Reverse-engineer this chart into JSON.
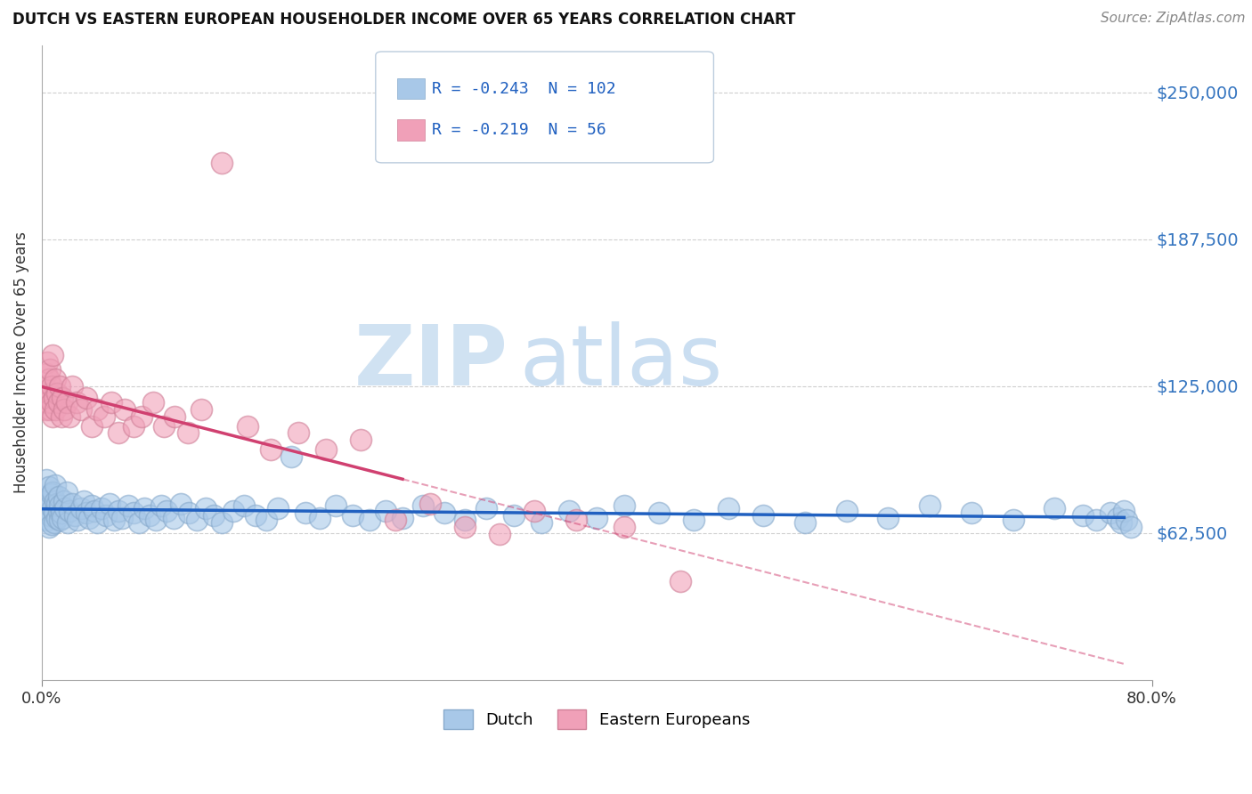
{
  "title": "DUTCH VS EASTERN EUROPEAN HOUSEHOLDER INCOME OVER 65 YEARS CORRELATION CHART",
  "source": "Source: ZipAtlas.com",
  "ylabel": "Householder Income Over 65 years",
  "xlim": [
    0.0,
    0.8
  ],
  "ylim": [
    0,
    270000
  ],
  "yticks": [
    62500,
    125000,
    187500,
    250000
  ],
  "ytick_labels": [
    "$62,500",
    "$125,000",
    "$187,500",
    "$250,000"
  ],
  "xticks": [
    0.0,
    0.8
  ],
  "xtick_labels": [
    "0.0%",
    "80.0%"
  ],
  "legend_dutch_R": "-0.243",
  "legend_dutch_N": "102",
  "legend_ee_R": "-0.219",
  "legend_ee_N": "56",
  "dutch_color": "#a8c8e8",
  "dutch_edge_color": "#88aacc",
  "ee_color": "#f0a0b8",
  "ee_edge_color": "#d08098",
  "dutch_line_color": "#2060c0",
  "ee_line_color": "#d04070",
  "background_color": "#ffffff",
  "watermark_zip": "ZIP",
  "watermark_atlas": "atlas",
  "dutch_scatter_x": [
    0.001,
    0.002,
    0.003,
    0.004,
    0.004,
    0.005,
    0.005,
    0.006,
    0.006,
    0.007,
    0.007,
    0.008,
    0.008,
    0.009,
    0.009,
    0.01,
    0.01,
    0.011,
    0.011,
    0.012,
    0.012,
    0.013,
    0.013,
    0.014,
    0.015,
    0.016,
    0.017,
    0.018,
    0.019,
    0.02,
    0.022,
    0.024,
    0.026,
    0.028,
    0.03,
    0.032,
    0.034,
    0.036,
    0.038,
    0.04,
    0.043,
    0.046,
    0.049,
    0.052,
    0.055,
    0.058,
    0.062,
    0.066,
    0.07,
    0.074,
    0.078,
    0.082,
    0.086,
    0.09,
    0.095,
    0.1,
    0.106,
    0.112,
    0.118,
    0.124,
    0.13,
    0.138,
    0.146,
    0.154,
    0.162,
    0.17,
    0.18,
    0.19,
    0.2,
    0.212,
    0.224,
    0.236,
    0.248,
    0.26,
    0.275,
    0.29,
    0.305,
    0.32,
    0.34,
    0.36,
    0.38,
    0.4,
    0.42,
    0.445,
    0.47,
    0.495,
    0.52,
    0.55,
    0.58,
    0.61,
    0.64,
    0.67,
    0.7,
    0.73,
    0.75,
    0.76,
    0.77,
    0.775,
    0.778,
    0.78,
    0.782,
    0.785
  ],
  "dutch_scatter_y": [
    78000,
    72000,
    85000,
    68000,
    76000,
    82000,
    65000,
    74000,
    70000,
    79000,
    66000,
    73000,
    80000,
    71000,
    67000,
    76000,
    83000,
    69000,
    75000,
    72000,
    78000,
    68000,
    74000,
    71000,
    69000,
    76000,
    73000,
    80000,
    67000,
    72000,
    75000,
    70000,
    68000,
    73000,
    76000,
    71000,
    69000,
    74000,
    72000,
    67000,
    73000,
    70000,
    75000,
    68000,
    72000,
    69000,
    74000,
    71000,
    67000,
    73000,
    70000,
    68000,
    74000,
    72000,
    69000,
    75000,
    71000,
    68000,
    73000,
    70000,
    67000,
    72000,
    74000,
    70000,
    68000,
    73000,
    95000,
    71000,
    69000,
    74000,
    70000,
    68000,
    72000,
    69000,
    74000,
    71000,
    68000,
    73000,
    70000,
    67000,
    72000,
    69000,
    74000,
    71000,
    68000,
    73000,
    70000,
    67000,
    72000,
    69000,
    74000,
    71000,
    68000,
    73000,
    70000,
    68000,
    71000,
    69000,
    67000,
    72000,
    68000,
    65000
  ],
  "ee_scatter_x": [
    0.001,
    0.002,
    0.003,
    0.003,
    0.004,
    0.004,
    0.005,
    0.005,
    0.006,
    0.006,
    0.007,
    0.007,
    0.008,
    0.008,
    0.009,
    0.01,
    0.01,
    0.011,
    0.012,
    0.013,
    0.014,
    0.015,
    0.016,
    0.018,
    0.02,
    0.022,
    0.025,
    0.028,
    0.032,
    0.036,
    0.04,
    0.045,
    0.05,
    0.055,
    0.06,
    0.066,
    0.072,
    0.08,
    0.088,
    0.096,
    0.105,
    0.115,
    0.13,
    0.148,
    0.165,
    0.185,
    0.205,
    0.23,
    0.255,
    0.28,
    0.305,
    0.33,
    0.355,
    0.385,
    0.42,
    0.46
  ],
  "ee_scatter_y": [
    120000,
    125000,
    115000,
    130000,
    118000,
    135000,
    122000,
    128000,
    115000,
    132000,
    118000,
    125000,
    138000,
    112000,
    120000,
    128000,
    115000,
    122000,
    118000,
    125000,
    112000,
    120000,
    115000,
    118000,
    112000,
    125000,
    118000,
    115000,
    120000,
    108000,
    115000,
    112000,
    118000,
    105000,
    115000,
    108000,
    112000,
    118000,
    108000,
    112000,
    105000,
    115000,
    220000,
    108000,
    98000,
    105000,
    98000,
    102000,
    68000,
    75000,
    65000,
    62000,
    72000,
    68000,
    65000,
    42000
  ]
}
